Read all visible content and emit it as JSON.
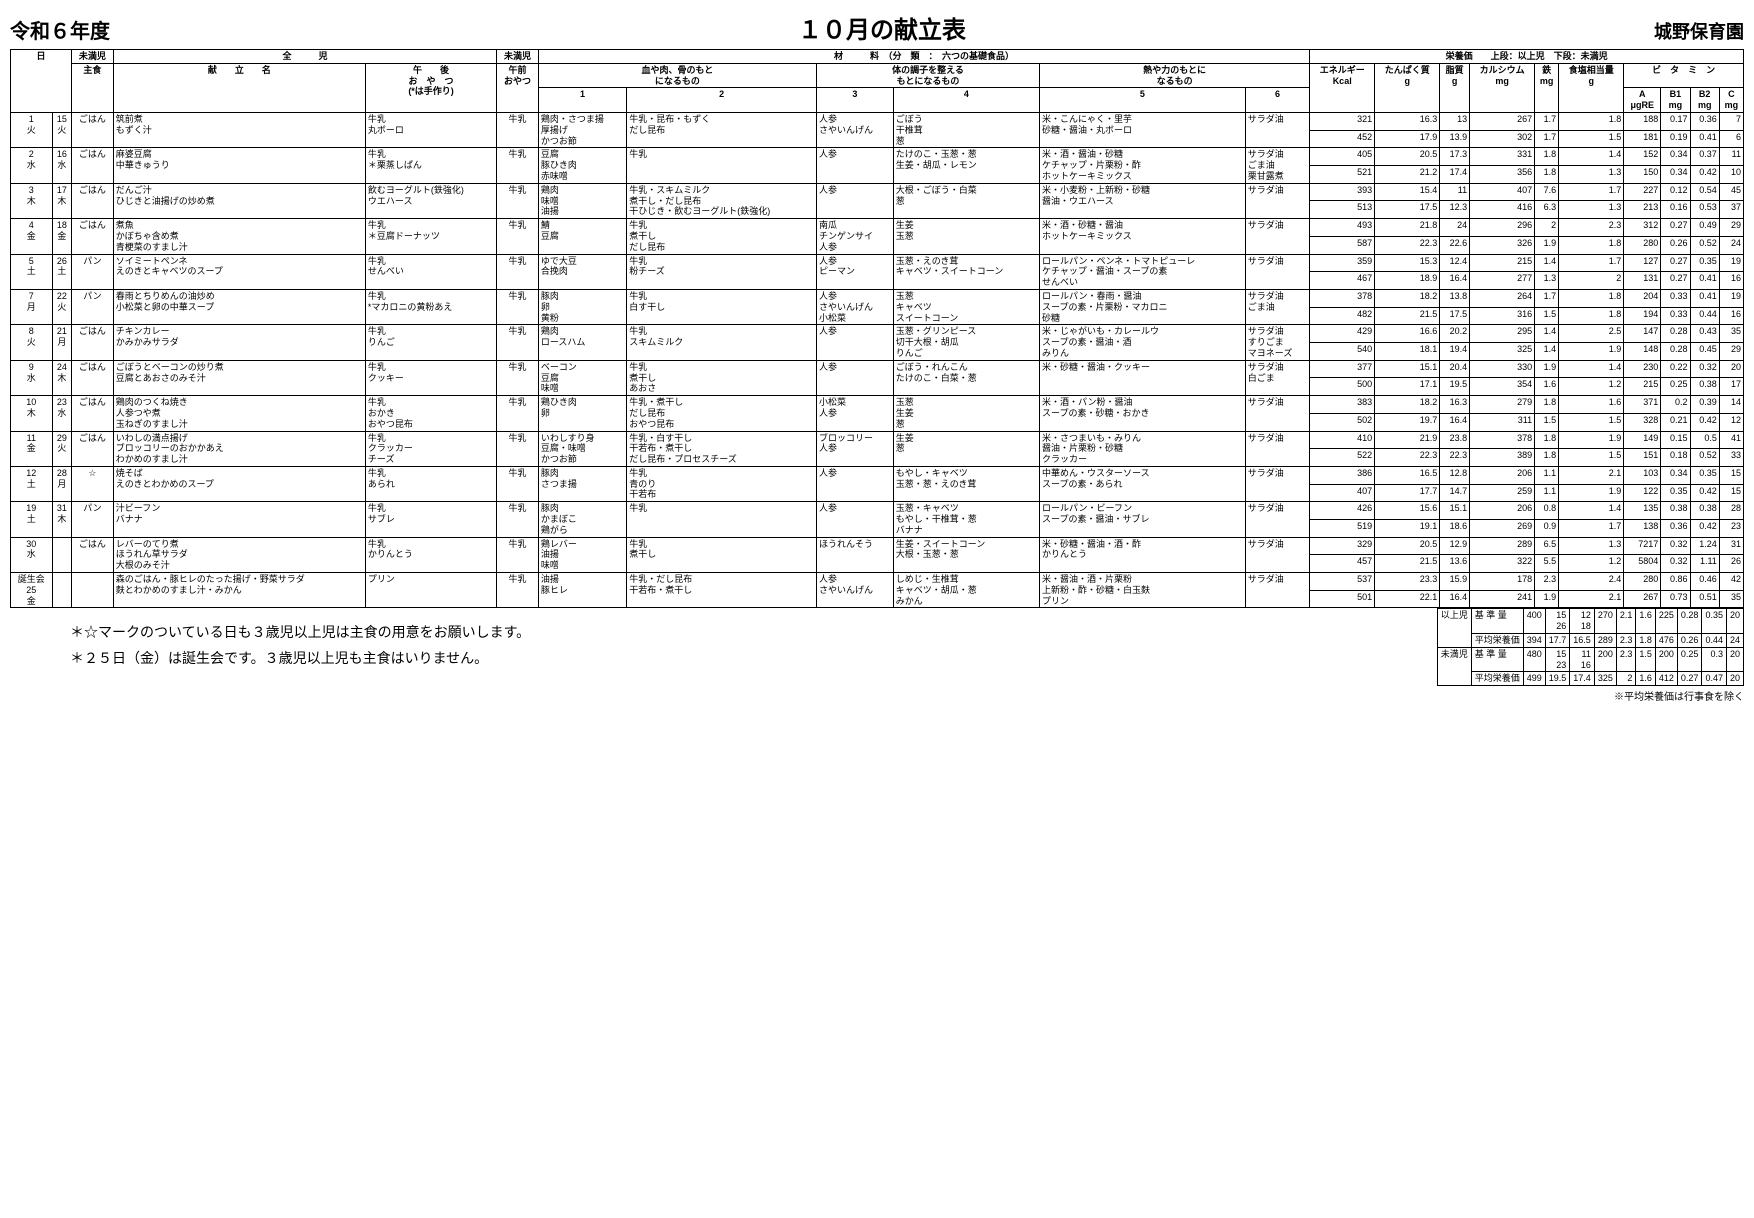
{
  "header": {
    "year": "令和６年度",
    "title": "１０月の献立表",
    "school": "城野保育園"
  },
  "columns": {
    "day": "日",
    "under": "未満児",
    "all": "全　　　児",
    "main_meal": "主食",
    "menu_name": "献　　立　　名",
    "afternoon_snack": "午　　後\nお　や　つ\n(*は手作り)",
    "under2": "未満児",
    "am_snack": "午前\nおやつ",
    "materials": "材　　　料　（分　類　：　六つの基礎食品）",
    "mat1": "血や肉、骨のもと\nになるもの",
    "mat1a": "1",
    "mat1b": "2",
    "mat2": "体の調子を整える\nもとになるもの",
    "mat2a": "3",
    "mat2b": "4",
    "mat3": "熱や力のもとに\nなるもの",
    "mat3a": "5",
    "mat3b": "6",
    "nutrition": "栄養価　　上段：以上児　下段：未満児",
    "energy": "エネルギー\nKcal",
    "protein": "たんぱく質\ng",
    "fat": "脂質\ng",
    "calcium": "カルシウム\nmg",
    "iron": "鉄\nmg",
    "salt": "食塩相当量\ng",
    "vitamins": "ビ　タ　ミ　ン",
    "vitA": "A\nμgRE",
    "vitB1": "B1\nmg",
    "vitB2": "B2\nmg",
    "vitC": "C\nmg"
  },
  "rows": [
    {
      "d1": "1\n火",
      "d2": "15\n火",
      "meal": "ごはん",
      "menu": "筑前煮\nもずく汁",
      "snack": "牛乳\n丸ボーロ",
      "am": "牛乳",
      "c1": "鶏肉・さつま揚\n厚揚げ\nかつお節",
      "c2": "牛乳・昆布・もずく\nだし昆布",
      "c3": "人参\nさやいんげん",
      "c4": "ごぼう\n干椎茸\n葱",
      "c5": "米・こんにゃく・里芋\n砂糖・醤油・丸ボーロ",
      "c6": "サラダ油",
      "n": [
        [
          "321",
          "16.3",
          "13",
          "267",
          "1.7",
          "1.8",
          "188",
          "0.17",
          "0.36",
          "7"
        ],
        [
          "452",
          "17.9",
          "13.9",
          "302",
          "1.7",
          "1.5",
          "181",
          "0.19",
          "0.41",
          "6"
        ]
      ]
    },
    {
      "d1": "2\n水",
      "d2": "16\n水",
      "meal": "ごはん",
      "menu": "麻婆豆腐\n中華きゅうり",
      "snack": "牛乳\n＊栗蒸しぱん",
      "am": "牛乳",
      "c1": "豆腐\n豚ひき肉\n赤味噌",
      "c2": "牛乳",
      "c3": "人参",
      "c4": "たけのこ・玉葱・葱\n生姜・胡瓜・レモン",
      "c5": "米・酒・醤油・砂糖\nケチャップ・片栗粉・酢\nホットケーキミックス",
      "c6": "サラダ油\nごま油\n栗甘露煮",
      "n": [
        [
          "405",
          "20.5",
          "17.3",
          "331",
          "1.8",
          "1.4",
          "152",
          "0.34",
          "0.37",
          "11"
        ],
        [
          "521",
          "21.2",
          "17.4",
          "356",
          "1.8",
          "1.3",
          "150",
          "0.34",
          "0.42",
          "10"
        ]
      ]
    },
    {
      "d1": "3\n木",
      "d2": "17\n木",
      "meal": "ごはん",
      "menu": "だんご汁\nひじきと油揚げの炒め煮",
      "snack": "飲むヨーグルト(鉄強化)\nウエハース",
      "am": "牛乳",
      "c1": "鶏肉\n味噌\n油揚",
      "c2": "牛乳・スキムミルク\n煮干し・だし昆布\n干ひじき・飲むヨーグルト(鉄強化)",
      "c3": "人参",
      "c4": "大根・ごぼう・白菜\n葱",
      "c5": "米・小麦粉・上新粉・砂糖\n醤油・ウエハース",
      "c6": "サラダ油",
      "n": [
        [
          "393",
          "15.4",
          "11",
          "407",
          "7.6",
          "1.7",
          "227",
          "0.12",
          "0.54",
          "45"
        ],
        [
          "513",
          "17.5",
          "12.3",
          "416",
          "6.3",
          "1.3",
          "213",
          "0.16",
          "0.53",
          "37"
        ]
      ]
    },
    {
      "d1": "4\n金",
      "d2": "18\n金",
      "meal": "ごはん",
      "menu": "煮魚\nかぼちゃ含め煮\n青梗菜のすまし汁",
      "snack": "牛乳\n＊豆腐ドーナッツ",
      "am": "牛乳",
      "c1": "鯖\n豆腐",
      "c2": "牛乳\n煮干し\nだし昆布",
      "c3": "南瓜\nチンゲンサイ\n人参",
      "c4": "生姜\n玉葱",
      "c5": "米・酒・砂糖・醤油\nホットケーキミックス",
      "c6": "サラダ油",
      "n": [
        [
          "493",
          "21.8",
          "24",
          "296",
          "2",
          "2.3",
          "312",
          "0.27",
          "0.49",
          "29"
        ],
        [
          "587",
          "22.3",
          "22.6",
          "326",
          "1.9",
          "1.8",
          "280",
          "0.26",
          "0.52",
          "24"
        ]
      ]
    },
    {
      "d1": "5\n土",
      "d2": "26\n土",
      "meal": "パン",
      "menu": "ソイミートペンネ\nえのきとキャベツのスープ",
      "snack": "牛乳\nせんべい",
      "am": "牛乳",
      "c1": "ゆで大豆\n合挽肉",
      "c2": "牛乳\n粉チーズ",
      "c3": "人参\nピーマン",
      "c4": "玉葱・えのき茸\nキャベツ・スイートコーン",
      "c5": "ロールパン・ペンネ・トマトピューレ\nケチャップ・醤油・スープの素\nせんべい",
      "c6": "サラダ油",
      "n": [
        [
          "359",
          "15.3",
          "12.4",
          "215",
          "1.4",
          "1.7",
          "127",
          "0.27",
          "0.35",
          "19"
        ],
        [
          "467",
          "18.9",
          "16.4",
          "277",
          "1.3",
          "2",
          "131",
          "0.27",
          "0.41",
          "16"
        ]
      ]
    },
    {
      "d1": "7\n月",
      "d2": "22\n火",
      "meal": "パン",
      "menu": "春雨とちりめんの油炒め\n小松菜と卵の中華スープ",
      "snack": "牛乳\n*マカロニの黄粉あえ",
      "am": "牛乳",
      "c1": "豚肉\n卵\n黄粉",
      "c2": "牛乳\n白す干し",
      "c3": "人参\nさやいんげん\n小松菜",
      "c4": "玉葱\nキャベツ\nスイートコーン",
      "c5": "ロールパン・春雨・醤油\nスープの素・片栗粉・マカロニ\n砂糖",
      "c6": "サラダ油\nごま油",
      "n": [
        [
          "378",
          "18.2",
          "13.8",
          "264",
          "1.7",
          "1.8",
          "204",
          "0.33",
          "0.41",
          "19"
        ],
        [
          "482",
          "21.5",
          "17.5",
          "316",
          "1.5",
          "1.8",
          "194",
          "0.33",
          "0.44",
          "16"
        ]
      ]
    },
    {
      "d1": "8\n火",
      "d2": "21\n月",
      "meal": "ごはん",
      "menu": "チキンカレー\nかみかみサラダ",
      "snack": "牛乳\nりんご",
      "am": "牛乳",
      "c1": "鶏肉\nロースハム",
      "c2": "牛乳\nスキムミルク",
      "c3": "人参",
      "c4": "玉葱・グリンピース\n切干大根・胡瓜\nりんご",
      "c5": "米・じゃがいも・カレールウ\nスープの素・醤油・酒\nみりん",
      "c6": "サラダ油\nすりごま\nマヨネーズ",
      "n": [
        [
          "429",
          "16.6",
          "20.2",
          "295",
          "1.4",
          "2.5",
          "147",
          "0.28",
          "0.43",
          "35"
        ],
        [
          "540",
          "18.1",
          "19.4",
          "325",
          "1.4",
          "1.9",
          "148",
          "0.28",
          "0.45",
          "29"
        ]
      ]
    },
    {
      "d1": "9\n水",
      "d2": "24\n木",
      "meal": "ごはん",
      "menu": "ごぼうとベーコンの炒り煮\n豆腐とあおさのみそ汁",
      "snack": "牛乳\nクッキー",
      "am": "牛乳",
      "c1": "ベーコン\n豆腐\n味噌",
      "c2": "牛乳\n煮干し\nあおさ",
      "c3": "人参",
      "c4": "ごぼう・れんこん\nたけのこ・白菜・葱",
      "c5": "米・砂糖・醤油・クッキー",
      "c6": "サラダ油\n白ごま",
      "n": [
        [
          "377",
          "15.1",
          "20.4",
          "330",
          "1.9",
          "1.4",
          "230",
          "0.22",
          "0.32",
          "20"
        ],
        [
          "500",
          "17.1",
          "19.5",
          "354",
          "1.6",
          "1.2",
          "215",
          "0.25",
          "0.38",
          "17"
        ]
      ]
    },
    {
      "d1": "10\n木",
      "d2": "23\n水",
      "meal": "ごはん",
      "menu": "鶏肉のつくね焼き\n人参つや煮\n玉ねぎのすまし汁",
      "snack": "牛乳\nおかき\nおやつ昆布",
      "am": "牛乳",
      "c1": "鶏ひき肉\n卵",
      "c2": "牛乳・煮干し\nだし昆布\nおやつ昆布",
      "c3": "小松菜\n人参",
      "c4": "玉葱\n生姜\n葱",
      "c5": "米・酒・パン粉・醤油\nスープの素・砂糖・おかき",
      "c6": "サラダ油",
      "n": [
        [
          "383",
          "18.2",
          "16.3",
          "279",
          "1.8",
          "1.6",
          "371",
          "0.2",
          "0.39",
          "14"
        ],
        [
          "502",
          "19.7",
          "16.4",
          "311",
          "1.5",
          "1.5",
          "328",
          "0.21",
          "0.42",
          "12"
        ]
      ]
    },
    {
      "d1": "11\n金",
      "d2": "29\n火",
      "meal": "ごはん",
      "menu": "いわしの満点揚げ\nブロッコリーのおかかあえ\nわかめのすまし汁",
      "snack": "牛乳\nクラッカー\nチーズ",
      "am": "牛乳",
      "c1": "いわしすり身\n豆腐・味噌\nかつお節",
      "c2": "牛乳・白す干し\n干若布・煮干し\nだし昆布・プロセスチーズ",
      "c3": "ブロッコリー\n人参",
      "c4": "生姜\n葱",
      "c5": "米・さつまいも・みりん\n醤油・片栗粉・砂糖\nクラッカー",
      "c6": "サラダ油",
      "n": [
        [
          "410",
          "21.9",
          "23.8",
          "378",
          "1.8",
          "1.9",
          "149",
          "0.15",
          "0.5",
          "41"
        ],
        [
          "522",
          "22.3",
          "22.3",
          "389",
          "1.8",
          "1.5",
          "151",
          "0.18",
          "0.52",
          "33"
        ]
      ]
    },
    {
      "d1": "12\n土",
      "d2": "28\n月",
      "meal": "☆",
      "menu": "焼そば\nえのきとわかめのスープ",
      "snack": "牛乳\nあられ",
      "am": "牛乳",
      "c1": "豚肉\nさつま揚",
      "c2": "牛乳\n青のり\n干若布",
      "c3": "人参",
      "c4": "もやし・キャベツ\n玉葱・葱・えのき茸",
      "c5": "中華めん・ウスターソース\nスープの素・あられ",
      "c6": "サラダ油",
      "n": [
        [
          "386",
          "16.5",
          "12.8",
          "206",
          "1.1",
          "2.1",
          "103",
          "0.34",
          "0.35",
          "15"
        ],
        [
          "407",
          "17.7",
          "14.7",
          "259",
          "1.1",
          "1.9",
          "122",
          "0.35",
          "0.42",
          "15"
        ]
      ]
    },
    {
      "d1": "19\n土",
      "d2": "31\n木",
      "meal": "パン",
      "menu": "汁ビーフン\nバナナ",
      "snack": "牛乳\nサブレ",
      "am": "牛乳",
      "c1": "豚肉\nかまぼこ\n鶏がら",
      "c2": "牛乳",
      "c3": "人参",
      "c4": "玉葱・キャベツ\nもやし・干椎茸・葱\nバナナ",
      "c5": "ロールパン・ビーフン\nスープの素・醤油・サブレ",
      "c6": "サラダ油",
      "n": [
        [
          "426",
          "15.6",
          "15.1",
          "206",
          "0.8",
          "1.4",
          "135",
          "0.38",
          "0.38",
          "28"
        ],
        [
          "519",
          "19.1",
          "18.6",
          "269",
          "0.9",
          "1.7",
          "138",
          "0.36",
          "0.42",
          "23"
        ]
      ]
    },
    {
      "d1": "30\n水",
      "d2": "",
      "meal": "ごはん",
      "menu": "レバーのてり煮\nほうれん草サラダ\n大根のみそ汁",
      "snack": "牛乳\nかりんとう",
      "am": "牛乳",
      "c1": "鶏レバー\n油揚\n味噌",
      "c2": "牛乳\n煮干し",
      "c3": "ほうれんそう",
      "c4": "生姜・スイートコーン\n大根・玉葱・葱",
      "c5": "米・砂糖・醤油・酒・酢\nかりんとう",
      "c6": "サラダ油",
      "n": [
        [
          "329",
          "20.5",
          "12.9",
          "289",
          "6.5",
          "1.3",
          "7217",
          "0.32",
          "1.24",
          "31"
        ],
        [
          "457",
          "21.5",
          "13.6",
          "322",
          "5.5",
          "1.2",
          "5804",
          "0.32",
          "1.11",
          "26"
        ]
      ]
    },
    {
      "d1": "誕生会\n25\n金",
      "d2": "",
      "meal": "",
      "menu": "森のごはん・豚ヒレのたった揚げ・野菜サラダ\n麩とわかめのすまし汁・みかん",
      "snack": "プリン",
      "am": "牛乳",
      "c1": "油揚\n豚ヒレ",
      "c2": "牛乳・だし昆布\n干若布・煮干し",
      "c3": "人参\nさやいんげん",
      "c4": "しめじ・生椎茸\nキャベツ・胡瓜・葱\nみかん",
      "c5": "米・醤油・酒・片栗粉\n上新粉・酢・砂糖・白玉麩\nプリン",
      "c6": "サラダ油",
      "n": [
        [
          "537",
          "23.3",
          "15.9",
          "178",
          "2.3",
          "2.4",
          "280",
          "0.86",
          "0.46",
          "42"
        ],
        [
          "501",
          "22.1",
          "16.4",
          "241",
          "1.9",
          "2.1",
          "267",
          "0.73",
          "0.51",
          "35"
        ]
      ]
    }
  ],
  "notes": {
    "n1": "＊☆マークのついている日も３歳児以上児は主食の用意をお願いします。",
    "n2": "＊２５日（金）は誕生会です。３歳児以上児も主食はいりません。"
  },
  "summary": {
    "over_label": "以上児",
    "under_label": "未満児",
    "std_label": "基 準 量",
    "avg_label": "平均栄養価",
    "over_std": [
      "400",
      "15\n26",
      "12\n18",
      "270",
      "2.1",
      "1.6",
      "225",
      "0.28",
      "0.35",
      "20"
    ],
    "over_avg": [
      "394",
      "17.7",
      "16.5",
      "289",
      "2.3",
      "1.8",
      "476",
      "0.26",
      "0.44",
      "24"
    ],
    "under_std": [
      "480",
      "15\n23",
      "11\n16",
      "200",
      "2.3",
      "1.5",
      "200",
      "0.25",
      "0.3",
      "20"
    ],
    "under_avg": [
      "499",
      "19.5",
      "17.4",
      "325",
      "2",
      "1.6",
      "412",
      "0.27",
      "0.47",
      "20"
    ]
  },
  "footnote": "※平均栄養価は行事食を除く"
}
